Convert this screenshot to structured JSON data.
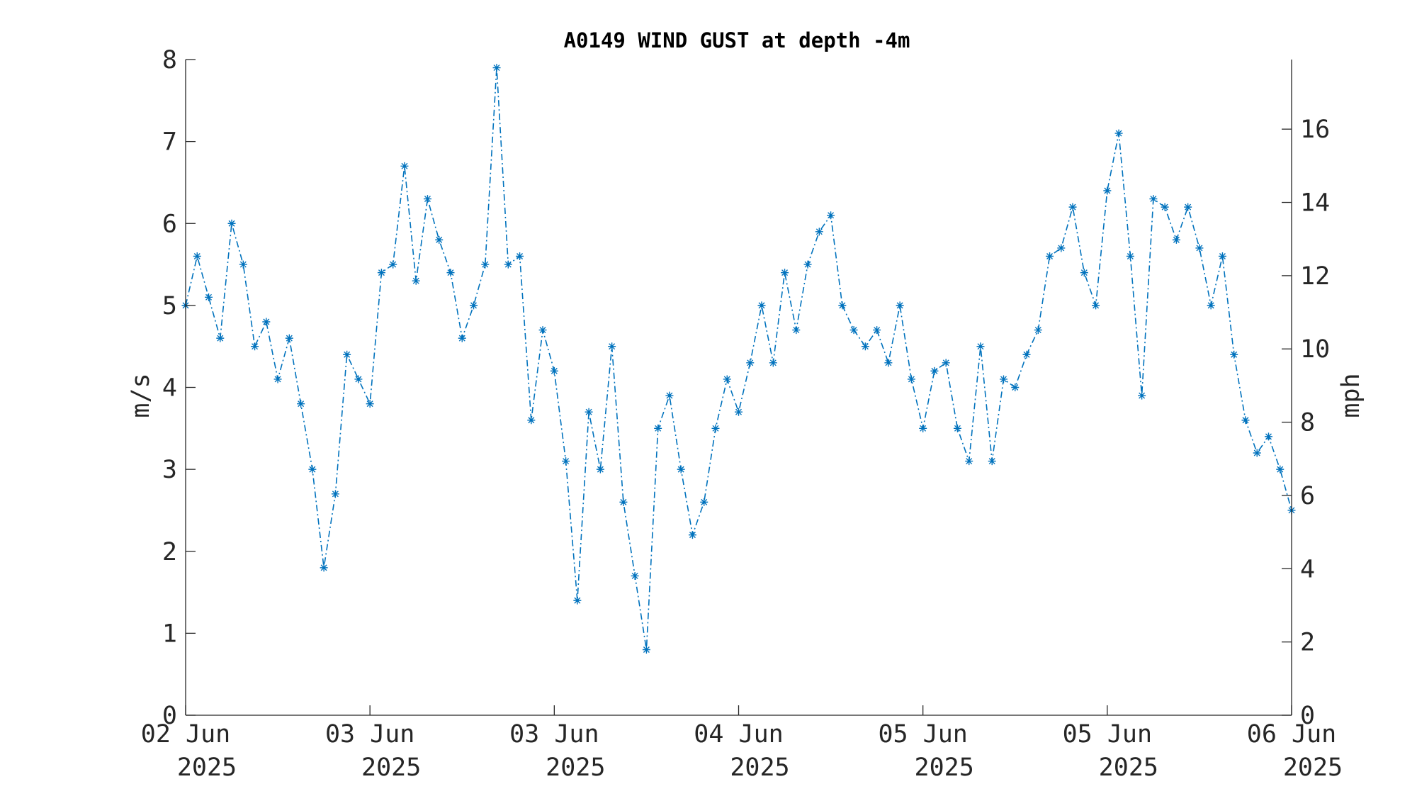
{
  "colors": {
    "series": "#0072bd",
    "axis": "#262626",
    "background": "#ffffff"
  },
  "chart_data": {
    "type": "line",
    "title": "A0149 WIND GUST at depth -4m",
    "ylabel": "m/s",
    "ylabel_right": "mph",
    "ylim": [
      0,
      8
    ],
    "ylim_right": [
      0,
      17.9
    ],
    "yticks": [
      "0",
      "1",
      "2",
      "3",
      "4",
      "5",
      "6",
      "7",
      "8"
    ],
    "yticks_right": [
      "0",
      "2",
      "4",
      "6",
      "8",
      "10",
      "12",
      "14",
      "16"
    ],
    "xlim": [
      "2025-06-02 00:00",
      "2025-06-06 00:00"
    ],
    "xticks": [
      {
        "line1": "02 Jun",
        "line2": "2025"
      },
      {
        "line1": "03 Jun",
        "line2": "2025"
      },
      {
        "line1": "03 Jun",
        "line2": "2025"
      },
      {
        "line1": "04 Jun",
        "line2": "2025"
      },
      {
        "line1": "05 Jun",
        "line2": "2025"
      },
      {
        "line1": "05 Jun",
        "line2": "2025"
      },
      {
        "line1": "06 Jun",
        "line2": "2025"
      }
    ],
    "marker": "asterisk",
    "line_style": "dash-dot",
    "grid": false,
    "series": [
      {
        "x": [
          "2025-06-02 00:00",
          "2025-06-02 01:00",
          "2025-06-02 02:00",
          "2025-06-02 03:00",
          "2025-06-02 04:00",
          "2025-06-02 05:00",
          "2025-06-02 06:00",
          "2025-06-02 07:00",
          "2025-06-02 08:00",
          "2025-06-02 09:00",
          "2025-06-02 10:00",
          "2025-06-02 11:00",
          "2025-06-02 12:00",
          "2025-06-02 13:00",
          "2025-06-02 14:00",
          "2025-06-02 15:00",
          "2025-06-02 16:00",
          "2025-06-02 17:00",
          "2025-06-02 18:00",
          "2025-06-02 19:00",
          "2025-06-02 20:00",
          "2025-06-02 21:00",
          "2025-06-02 22:00",
          "2025-06-02 23:00",
          "2025-06-03 00:00",
          "2025-06-03 01:00",
          "2025-06-03 02:00",
          "2025-06-03 03:00",
          "2025-06-03 04:00",
          "2025-06-03 05:00",
          "2025-06-03 06:00",
          "2025-06-03 07:00",
          "2025-06-03 08:00",
          "2025-06-03 09:00",
          "2025-06-03 10:00",
          "2025-06-03 11:00",
          "2025-06-03 12:00",
          "2025-06-03 13:00",
          "2025-06-03 14:00",
          "2025-06-03 15:00",
          "2025-06-03 16:00",
          "2025-06-03 17:00",
          "2025-06-03 18:00",
          "2025-06-03 19:00",
          "2025-06-03 20:00",
          "2025-06-03 21:00",
          "2025-06-03 22:00",
          "2025-06-03 23:00",
          "2025-06-04 00:00",
          "2025-06-04 01:00",
          "2025-06-04 02:00",
          "2025-06-04 03:00",
          "2025-06-04 04:00",
          "2025-06-04 05:00",
          "2025-06-04 06:00",
          "2025-06-04 07:00",
          "2025-06-04 08:00",
          "2025-06-04 09:00",
          "2025-06-04 10:00",
          "2025-06-04 11:00",
          "2025-06-04 12:00",
          "2025-06-04 13:00",
          "2025-06-04 14:00",
          "2025-06-04 15:00",
          "2025-06-04 16:00",
          "2025-06-04 17:00",
          "2025-06-04 18:00",
          "2025-06-04 19:00",
          "2025-06-04 20:00",
          "2025-06-04 21:00",
          "2025-06-04 22:00",
          "2025-06-04 23:00",
          "2025-06-05 00:00",
          "2025-06-05 01:00",
          "2025-06-05 02:00",
          "2025-06-05 03:00",
          "2025-06-05 04:00",
          "2025-06-05 05:00",
          "2025-06-05 06:00",
          "2025-06-05 07:00",
          "2025-06-05 08:00",
          "2025-06-05 09:00",
          "2025-06-05 10:00",
          "2025-06-05 11:00",
          "2025-06-05 12:00",
          "2025-06-05 13:00",
          "2025-06-05 14:00",
          "2025-06-05 15:00",
          "2025-06-05 16:00",
          "2025-06-05 17:00",
          "2025-06-05 18:00",
          "2025-06-05 19:00",
          "2025-06-05 20:00",
          "2025-06-05 21:00",
          "2025-06-05 22:00",
          "2025-06-05 23:00",
          "2025-06-06 00:00"
        ],
        "y": [
          5.0,
          5.6,
          5.1,
          4.6,
          6.0,
          5.5,
          4.5,
          4.8,
          4.1,
          4.6,
          3.8,
          3.0,
          1.8,
          2.7,
          4.4,
          4.1,
          3.8,
          5.4,
          5.5,
          6.7,
          5.3,
          6.3,
          5.8,
          5.4,
          4.6,
          5.0,
          5.5,
          7.9,
          5.5,
          5.6,
          3.6,
          4.7,
          4.2,
          3.1,
          1.4,
          3.7,
          3.0,
          4.5,
          2.6,
          1.7,
          0.8,
          3.5,
          3.9,
          3.0,
          2.2,
          2.6,
          3.5,
          4.1,
          3.7,
          4.3,
          5.0,
          4.3,
          5.4,
          4.7,
          5.5,
          5.9,
          6.1,
          5.0,
          4.7,
          4.5,
          4.7,
          4.3,
          5.0,
          4.1,
          3.5,
          4.2,
          4.3,
          3.5,
          3.1,
          4.5,
          3.1,
          4.1,
          4.0,
          4.4,
          4.7,
          5.6,
          5.7,
          6.2,
          5.4,
          5.0,
          6.4,
          7.1,
          5.6,
          3.9,
          6.3,
          6.2,
          5.8,
          6.2,
          5.7,
          5.0,
          5.6,
          4.4,
          3.6,
          3.2,
          3.4,
          3.0,
          2.5
        ]
      }
    ]
  }
}
